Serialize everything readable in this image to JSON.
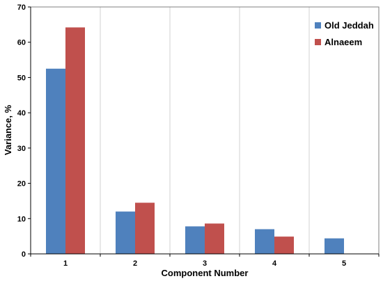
{
  "chart_data": {
    "type": "bar",
    "title": "",
    "xlabel": "Component Number",
    "ylabel": "Variance, %",
    "categories": [
      "1",
      "2",
      "3",
      "4",
      "5"
    ],
    "series": [
      {
        "name": "Old Jeddah",
        "values": [
          52.5,
          12.0,
          7.8,
          7.0,
          4.4
        ],
        "color": "#4f81bd"
      },
      {
        "name": "Alnaeem",
        "values": [
          64.2,
          14.5,
          8.6,
          4.9,
          null
        ],
        "color": "#c0504d"
      }
    ],
    "ylim": [
      0,
      70
    ],
    "yticks": [
      0,
      10,
      20,
      30,
      40,
      50,
      60,
      70
    ],
    "grid": "vertical",
    "legend": "top-right"
  }
}
